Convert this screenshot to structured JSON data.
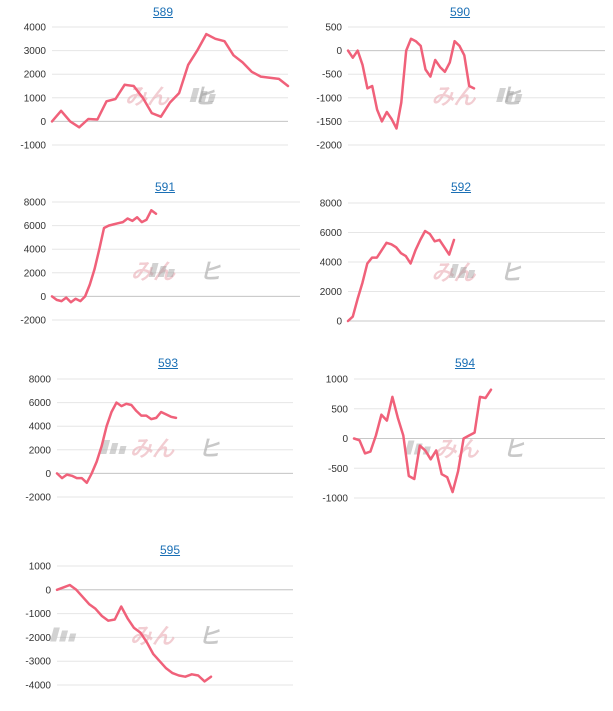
{
  "line_color": "#f0617a",
  "grid_color": "#e6e6e6",
  "axis_color": "#c8c8c8",
  "title_color": "#1a6fb5",
  "watermark": {
    "part_a": "みん",
    "part_b": "ヒ"
  },
  "chart_data": [
    {
      "type": "line",
      "title": "589",
      "yticks": [
        4000,
        3000,
        2000,
        1000,
        0,
        -1000
      ],
      "ylim": [
        -1000,
        4000
      ],
      "values": [
        0,
        450,
        0,
        -250,
        100,
        80,
        850,
        950,
        1550,
        1500,
        1000,
        350,
        200,
        800,
        1200,
        2400,
        3000,
        3700,
        3500,
        3400,
        2800,
        2500,
        2100,
        1900,
        1850,
        1800,
        1500
      ]
    },
    {
      "type": "line",
      "title": "590",
      "yticks": [
        500,
        0,
        -500,
        -1000,
        -1500,
        -2000
      ],
      "ylim": [
        -2000,
        500
      ],
      "values": [
        0,
        -150,
        0,
        -300,
        -800,
        -750,
        -1250,
        -1500,
        -1300,
        -1450,
        -1650,
        -1100,
        0,
        250,
        200,
        100,
        -400,
        -550,
        -200,
        -350,
        -450,
        -250,
        200,
        100,
        -100,
        -750,
        -800
      ]
    },
    {
      "type": "line",
      "title": "591",
      "yticks": [
        8000,
        6000,
        4000,
        2000,
        0,
        -2000
      ],
      "ylim": [
        -2000,
        8000
      ],
      "values": [
        0,
        -300,
        -400,
        -100,
        -500,
        -200,
        -400,
        0,
        1000,
        2300,
        4000,
        5800,
        6000,
        6100,
        6200,
        6300,
        6600,
        6400,
        6700,
        6300,
        6500,
        7300,
        7000
      ]
    },
    {
      "type": "line",
      "title": "592",
      "yticks": [
        8000,
        6000,
        4000,
        2000,
        0
      ],
      "ylim": [
        0,
        8000
      ],
      "values": [
        0,
        300,
        1500,
        2600,
        3900,
        4300,
        4300,
        4800,
        5300,
        5200,
        5000,
        4600,
        4400,
        3900,
        4800,
        5500,
        6100,
        5900,
        5400,
        5500,
        5000,
        4500,
        5500
      ]
    },
    {
      "type": "line",
      "title": "593",
      "yticks": [
        8000,
        6000,
        4000,
        2000,
        0,
        -2000
      ],
      "ylim": [
        -2000,
        8000
      ],
      "values": [
        0,
        -400,
        -100,
        -200,
        -400,
        -400,
        -800,
        0,
        1000,
        2300,
        4000,
        5200,
        6000,
        5700,
        5900,
        5800,
        5300,
        4900,
        4900,
        4600,
        4700,
        5200,
        5000,
        4800,
        4700
      ]
    },
    {
      "type": "line",
      "title": "594",
      "yticks": [
        1000,
        500,
        0,
        -500,
        -1000
      ],
      "ylim": [
        -1000,
        1000
      ],
      "values": [
        0,
        -30,
        -250,
        -220,
        50,
        400,
        300,
        700,
        350,
        50,
        -630,
        -680,
        -120,
        -200,
        -350,
        -200,
        -600,
        -650,
        -900,
        -550,
        0,
        50,
        100,
        700,
        680,
        820
      ]
    },
    {
      "type": "line",
      "title": "595",
      "yticks": [
        1000,
        0,
        -1000,
        -2000,
        -3000,
        -4000
      ],
      "ylim": [
        -4000,
        1000
      ],
      "values": [
        0,
        100,
        200,
        0,
        -300,
        -600,
        -800,
        -1100,
        -1300,
        -1250,
        -700,
        -1200,
        -1600,
        -1800,
        -2200,
        -2700,
        -3000,
        -3300,
        -3500,
        -3600,
        -3650,
        -3550,
        -3600,
        -3850,
        -3650
      ]
    }
  ]
}
